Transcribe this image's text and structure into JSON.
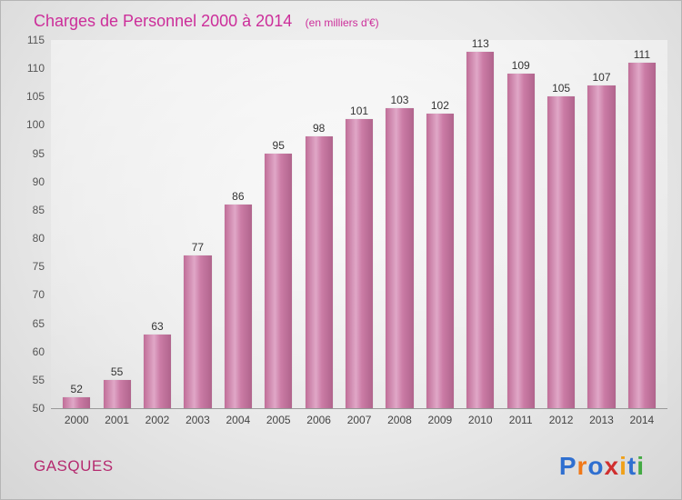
{
  "header": {
    "title": "Charges de Personnel 2000 à 2014",
    "subtitle": "(en milliers d'€)"
  },
  "chart_data": {
    "type": "bar",
    "title": "Charges de Personnel 2000 à 2014",
    "subtitle": "(en milliers d'€)",
    "categories": [
      "2000",
      "2001",
      "2002",
      "2003",
      "2004",
      "2005",
      "2006",
      "2007",
      "2008",
      "2009",
      "2010",
      "2011",
      "2012",
      "2013",
      "2014"
    ],
    "values": [
      52,
      55,
      63,
      77,
      86,
      95,
      98,
      101,
      103,
      102,
      113,
      109,
      105,
      107,
      111
    ],
    "xlabel": "",
    "ylabel": "",
    "ylim": [
      50,
      115
    ],
    "ytick_step": 5,
    "grid": false,
    "legend": "none",
    "bar_color": "#c77ca4"
  },
  "footer": {
    "company": "GASQUES",
    "logo_letters": [
      {
        "char": "P",
        "color": "#2f6fd0"
      },
      {
        "char": "r",
        "color": "#f07818"
      },
      {
        "char": "o",
        "color": "#2f6fd0"
      },
      {
        "char": "x",
        "color": "#d02f2f"
      },
      {
        "char": "i",
        "color": "#f0a018"
      },
      {
        "char": "t",
        "color": "#2f6fd0"
      },
      {
        "char": "i",
        "color": "#44aa44"
      }
    ]
  },
  "colors": {
    "title": "#cc2e9a",
    "company": "#b52a6f",
    "value_label": "#333333",
    "axis_label": "#555555"
  }
}
